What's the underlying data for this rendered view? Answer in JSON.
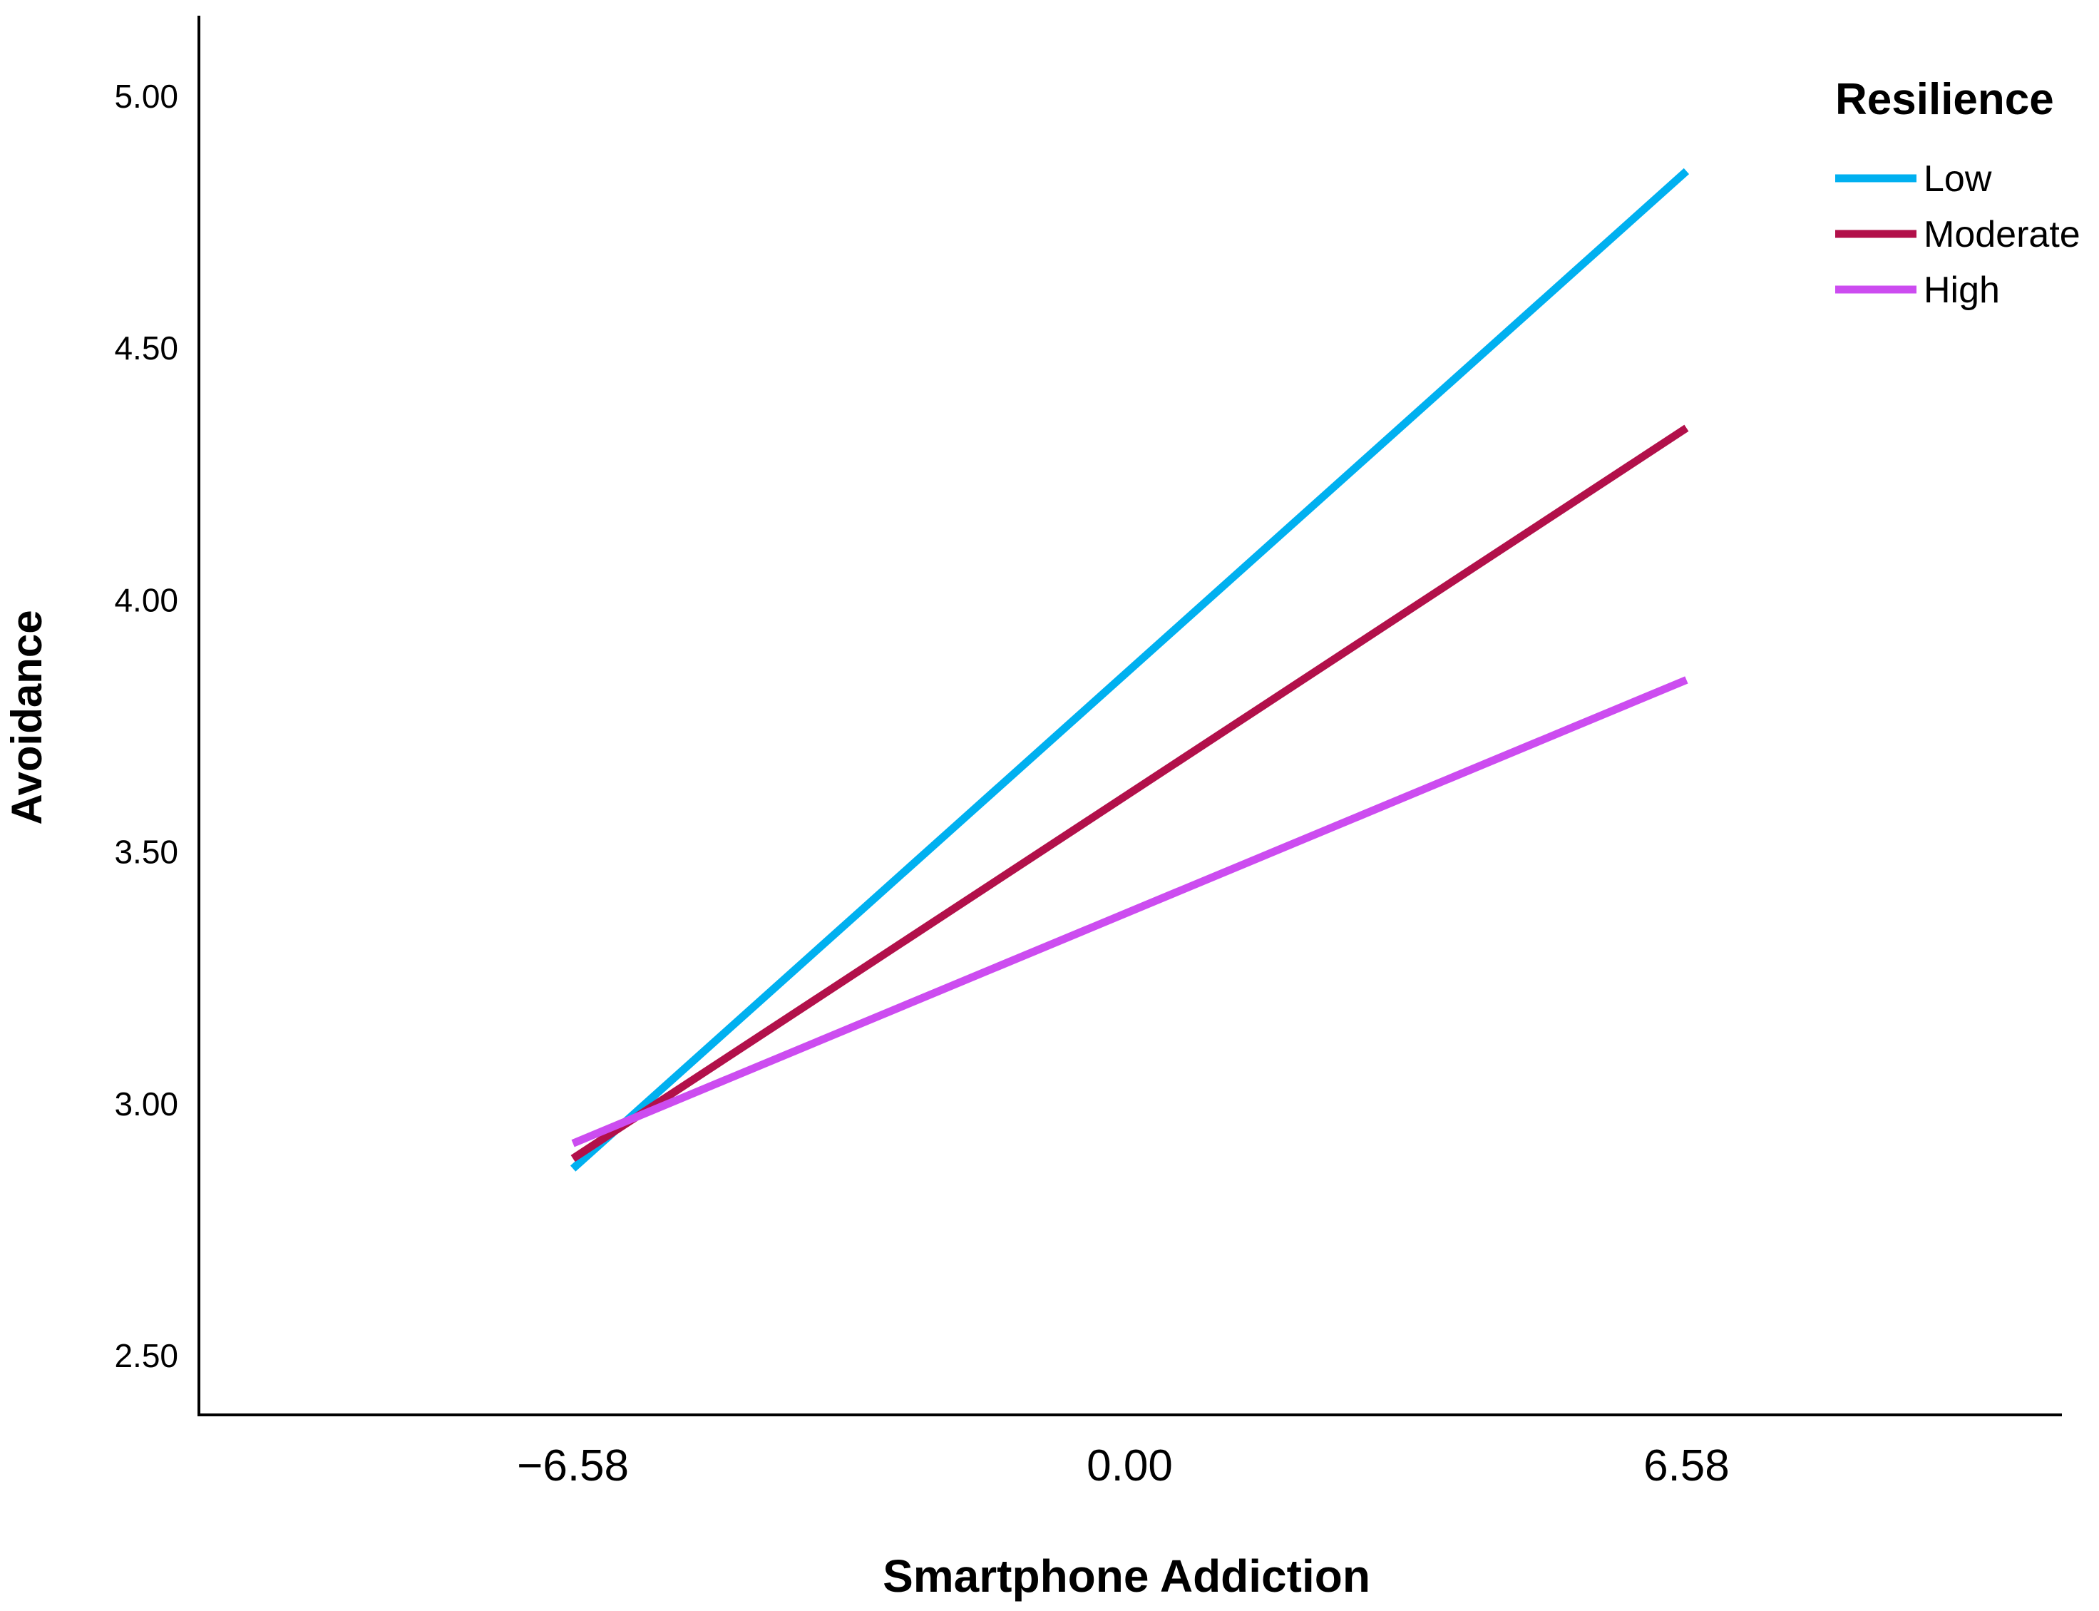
{
  "chart_data": {
    "type": "line",
    "xlabel": "Smartphone Addiction",
    "ylabel": "Avoidance",
    "x": [
      -6.58,
      6.58
    ],
    "x_ticks": [
      "−6.58",
      "0.00",
      "6.58"
    ],
    "x_tick_values": [
      -6.58,
      0,
      6.58
    ],
    "xlim": [
      -11,
      11
    ],
    "y_ticks": [
      "2.50",
      "3.00",
      "3.50",
      "4.00",
      "4.50",
      "5.00"
    ],
    "y_tick_values": [
      2.5,
      3.0,
      3.5,
      4.0,
      4.5,
      5.0
    ],
    "ylim": [
      2.34,
      5.16
    ],
    "grid": false,
    "legend_title": "Resilience",
    "legend_position": "top-right",
    "series": [
      {
        "name": "Low",
        "values": [
          2.87,
          4.85
        ],
        "color": "#00b0f0"
      },
      {
        "name": "Moderate",
        "values": [
          2.89,
          4.34
        ],
        "color": "#b2104a"
      },
      {
        "name": "High",
        "values": [
          2.92,
          3.84
        ],
        "color": "#cc4cf0"
      }
    ]
  }
}
